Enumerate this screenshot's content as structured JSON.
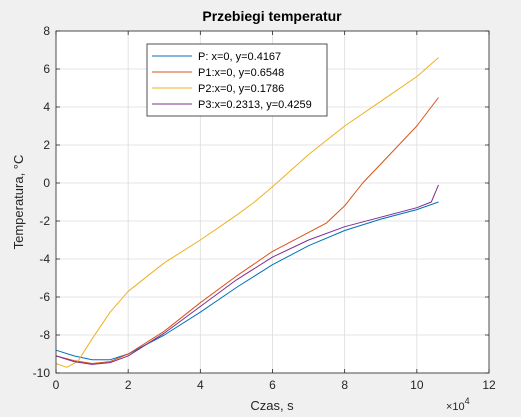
{
  "chart_data": {
    "type": "line",
    "title": "Przebiegi temperatur",
    "xlabel": "Czas, s",
    "ylabel": "Temperatura, °C",
    "x_exponent_label": "×10",
    "x_exponent": "4",
    "xlim": [
      0,
      12
    ],
    "ylim": [
      -10,
      8
    ],
    "xticks": [
      0,
      2,
      4,
      6,
      8,
      10,
      12
    ],
    "yticks": [
      -10,
      -8,
      -6,
      -4,
      -2,
      0,
      2,
      4,
      6,
      8
    ],
    "grid": true,
    "legend_position": "top-left",
    "series": [
      {
        "name": "P: x=0, y=0.4167",
        "color": "#0072bd",
        "points": [
          [
            0,
            -8.8
          ],
          [
            0.5,
            -9.1
          ],
          [
            1.0,
            -9.3
          ],
          [
            1.5,
            -9.3
          ],
          [
            2.0,
            -9.0
          ],
          [
            3.0,
            -8.0
          ],
          [
            4.0,
            -6.8
          ],
          [
            5.0,
            -5.5
          ],
          [
            6.0,
            -4.3
          ],
          [
            7.0,
            -3.3
          ],
          [
            8.0,
            -2.5
          ],
          [
            9.0,
            -1.9
          ],
          [
            10.0,
            -1.4
          ],
          [
            10.6,
            -1.0
          ]
        ]
      },
      {
        "name": "P1:x=0, y=0.6548",
        "color": "#d95319",
        "points": [
          [
            0,
            -9.1
          ],
          [
            0.5,
            -9.35
          ],
          [
            1.0,
            -9.5
          ],
          [
            1.5,
            -9.4
          ],
          [
            2.0,
            -9.0
          ],
          [
            3.0,
            -7.8
          ],
          [
            4.0,
            -6.3
          ],
          [
            5.0,
            -4.9
          ],
          [
            6.0,
            -3.6
          ],
          [
            7.0,
            -2.6
          ],
          [
            7.5,
            -2.1
          ],
          [
            8.0,
            -1.2
          ],
          [
            8.5,
            0.0
          ],
          [
            9.0,
            1.0
          ],
          [
            10.0,
            3.0
          ],
          [
            10.6,
            4.5
          ]
        ]
      },
      {
        "name": "P2:x=0, y=0.1786",
        "color": "#edb120",
        "points": [
          [
            0,
            -9.5
          ],
          [
            0.3,
            -9.7
          ],
          [
            0.6,
            -9.4
          ],
          [
            1.0,
            -8.2
          ],
          [
            1.5,
            -6.8
          ],
          [
            2.0,
            -5.7
          ],
          [
            3.0,
            -4.2
          ],
          [
            4.0,
            -3.0
          ],
          [
            5.0,
            -1.7
          ],
          [
            5.5,
            -1.0
          ],
          [
            6.0,
            -0.2
          ],
          [
            7.0,
            1.5
          ],
          [
            8.0,
            3.0
          ],
          [
            9.0,
            4.3
          ],
          [
            10.0,
            5.6
          ],
          [
            10.6,
            6.6
          ]
        ]
      },
      {
        "name": "P3:x=0.2313, y=0.4259",
        "color": "#7e2f8e",
        "points": [
          [
            0,
            -9.1
          ],
          [
            0.5,
            -9.4
          ],
          [
            1.0,
            -9.55
          ],
          [
            1.5,
            -9.45
          ],
          [
            2.0,
            -9.1
          ],
          [
            3.0,
            -7.9
          ],
          [
            4.0,
            -6.5
          ],
          [
            5.0,
            -5.1
          ],
          [
            6.0,
            -3.9
          ],
          [
            7.0,
            -3.0
          ],
          [
            8.0,
            -2.3
          ],
          [
            9.0,
            -1.8
          ],
          [
            10.0,
            -1.3
          ],
          [
            10.4,
            -1.0
          ],
          [
            10.6,
            -0.1
          ]
        ]
      }
    ]
  }
}
